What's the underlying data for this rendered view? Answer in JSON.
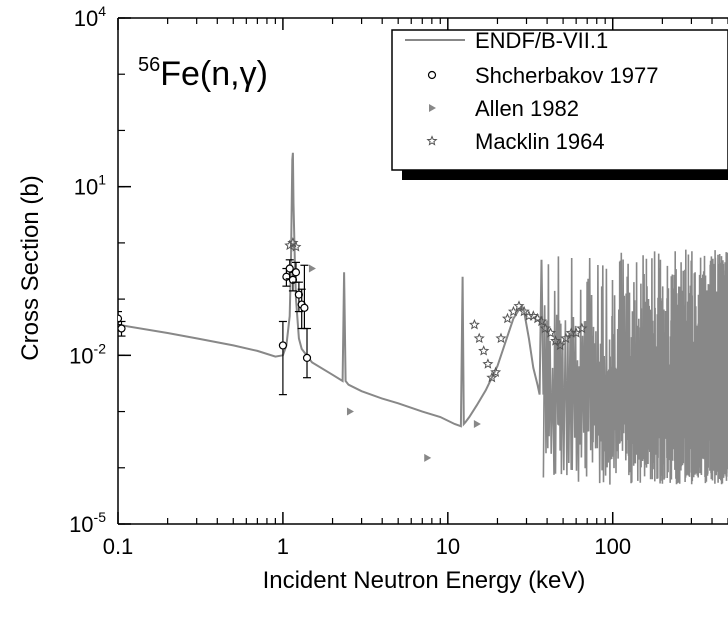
{
  "chart_data": {
    "type": "scatter",
    "title_prefix": "56",
    "title_main": "Fe(n,γ)",
    "xlabel": "Incident Neutron Energy (keV)",
    "ylabel": "Cross Section (b)",
    "x_scale": "log",
    "y_scale": "log",
    "xlim": [
      0.1,
      500
    ],
    "ylim": [
      1e-05,
      10000
    ],
    "x_ticks": [
      {
        "value": 0.1,
        "label": "0.1"
      },
      {
        "value": 1,
        "label": "1"
      },
      {
        "value": 10,
        "label": "10"
      },
      {
        "value": 100,
        "label": "100"
      }
    ],
    "y_ticks": [
      {
        "value": 1e-05,
        "base": "10",
        "exp": "-5"
      },
      {
        "value": 0.01,
        "base": "10",
        "exp": "-2"
      },
      {
        "value": 10,
        "base": "10",
        "exp": "1"
      },
      {
        "value": 10000,
        "base": "10",
        "exp": "4"
      }
    ],
    "grid": false,
    "legend_position": "top-right",
    "series": [
      {
        "name": "ENDF/B-VII.1",
        "kind": "line",
        "color": "#888888",
        "x": [
          0.1,
          0.2,
          0.3,
          0.5,
          0.7,
          0.9,
          1.0,
          1.05,
          1.1,
          1.12,
          1.14,
          1.15,
          1.16,
          1.18,
          1.2,
          1.25,
          1.3,
          1.5,
          2.0,
          2.3,
          2.35,
          2.4,
          2.5,
          3.0,
          4.0,
          5.0,
          7.0,
          9.0,
          11.0,
          12.0,
          12.3,
          12.5,
          12.8,
          13.5,
          15.0,
          17.0,
          20.0,
          23.0,
          25.0,
          27.0,
          28.0,
          29.0,
          31.0,
          33.0,
          35.0,
          36.0,
          37.0,
          38.0
        ],
        "y": [
          0.035,
          0.025,
          0.02,
          0.015,
          0.012,
          0.0095,
          0.01,
          0.015,
          0.05,
          0.5,
          30,
          40,
          5,
          0.5,
          0.1,
          0.02,
          0.013,
          0.0075,
          0.0045,
          0.0035,
          0.3,
          0.0035,
          0.003,
          0.0023,
          0.0017,
          0.0014,
          0.001,
          0.0008,
          0.0006,
          0.00055,
          0.25,
          0.0006,
          0.00065,
          0.0008,
          0.0013,
          0.0024,
          0.0065,
          0.022,
          0.045,
          0.065,
          0.075,
          0.06,
          0.02,
          0.006,
          0.003,
          0.002,
          0.5,
          0.002
        ]
      },
      {
        "name": "Shcherbakov 1977",
        "kind": "scatter",
        "marker": "circle",
        "color": "#000000",
        "x": [
          0.1,
          0.105,
          1.0,
          1.05,
          1.1,
          1.15,
          1.2,
          1.25,
          1.3,
          1.35,
          1.4
        ],
        "y": [
          0.045,
          0.03,
          0.015,
          0.25,
          0.35,
          0.22,
          0.3,
          0.12,
          0.08,
          0.07,
          0.009
        ],
        "err_low": [
          0.035,
          0.022,
          0.002,
          0.17,
          0.23,
          0.14,
          0.2,
          0.06,
          0.03,
          0.03,
          0.004
        ],
        "err_high": [
          0.06,
          0.04,
          0.04,
          0.35,
          0.5,
          0.3,
          0.45,
          0.2,
          0.15,
          0.4,
          0.03
        ]
      },
      {
        "name": "Allen 1982",
        "kind": "scatter",
        "marker": "triangle-right",
        "color": "#888888",
        "x": [
          1.5,
          2.55,
          7.5,
          15.0,
          40.0,
          55.0
        ],
        "y": [
          0.35,
          0.001,
          0.00015,
          0.0006,
          0.003,
          0.0025
        ]
      },
      {
        "name": "Macklin 1964",
        "kind": "scatter",
        "marker": "star",
        "color": "#555555",
        "x": [
          1.1,
          1.15,
          1.2,
          14.5,
          15.5,
          16.5,
          17.5,
          18.5,
          19.5,
          21.0,
          23.0,
          25.0,
          27.0,
          29.0,
          31.0,
          33.0,
          35.0,
          37.0,
          39.0,
          42.0,
          45.0,
          48.0,
          52.0,
          56.0,
          60.0,
          65.0
        ],
        "y": [
          0.9,
          1.0,
          0.85,
          0.035,
          0.02,
          0.012,
          0.007,
          0.004,
          0.005,
          0.02,
          0.045,
          0.06,
          0.075,
          0.06,
          0.05,
          0.05,
          0.045,
          0.04,
          0.03,
          0.025,
          0.018,
          0.015,
          0.02,
          0.025,
          0.025,
          0.03
        ]
      }
    ]
  }
}
